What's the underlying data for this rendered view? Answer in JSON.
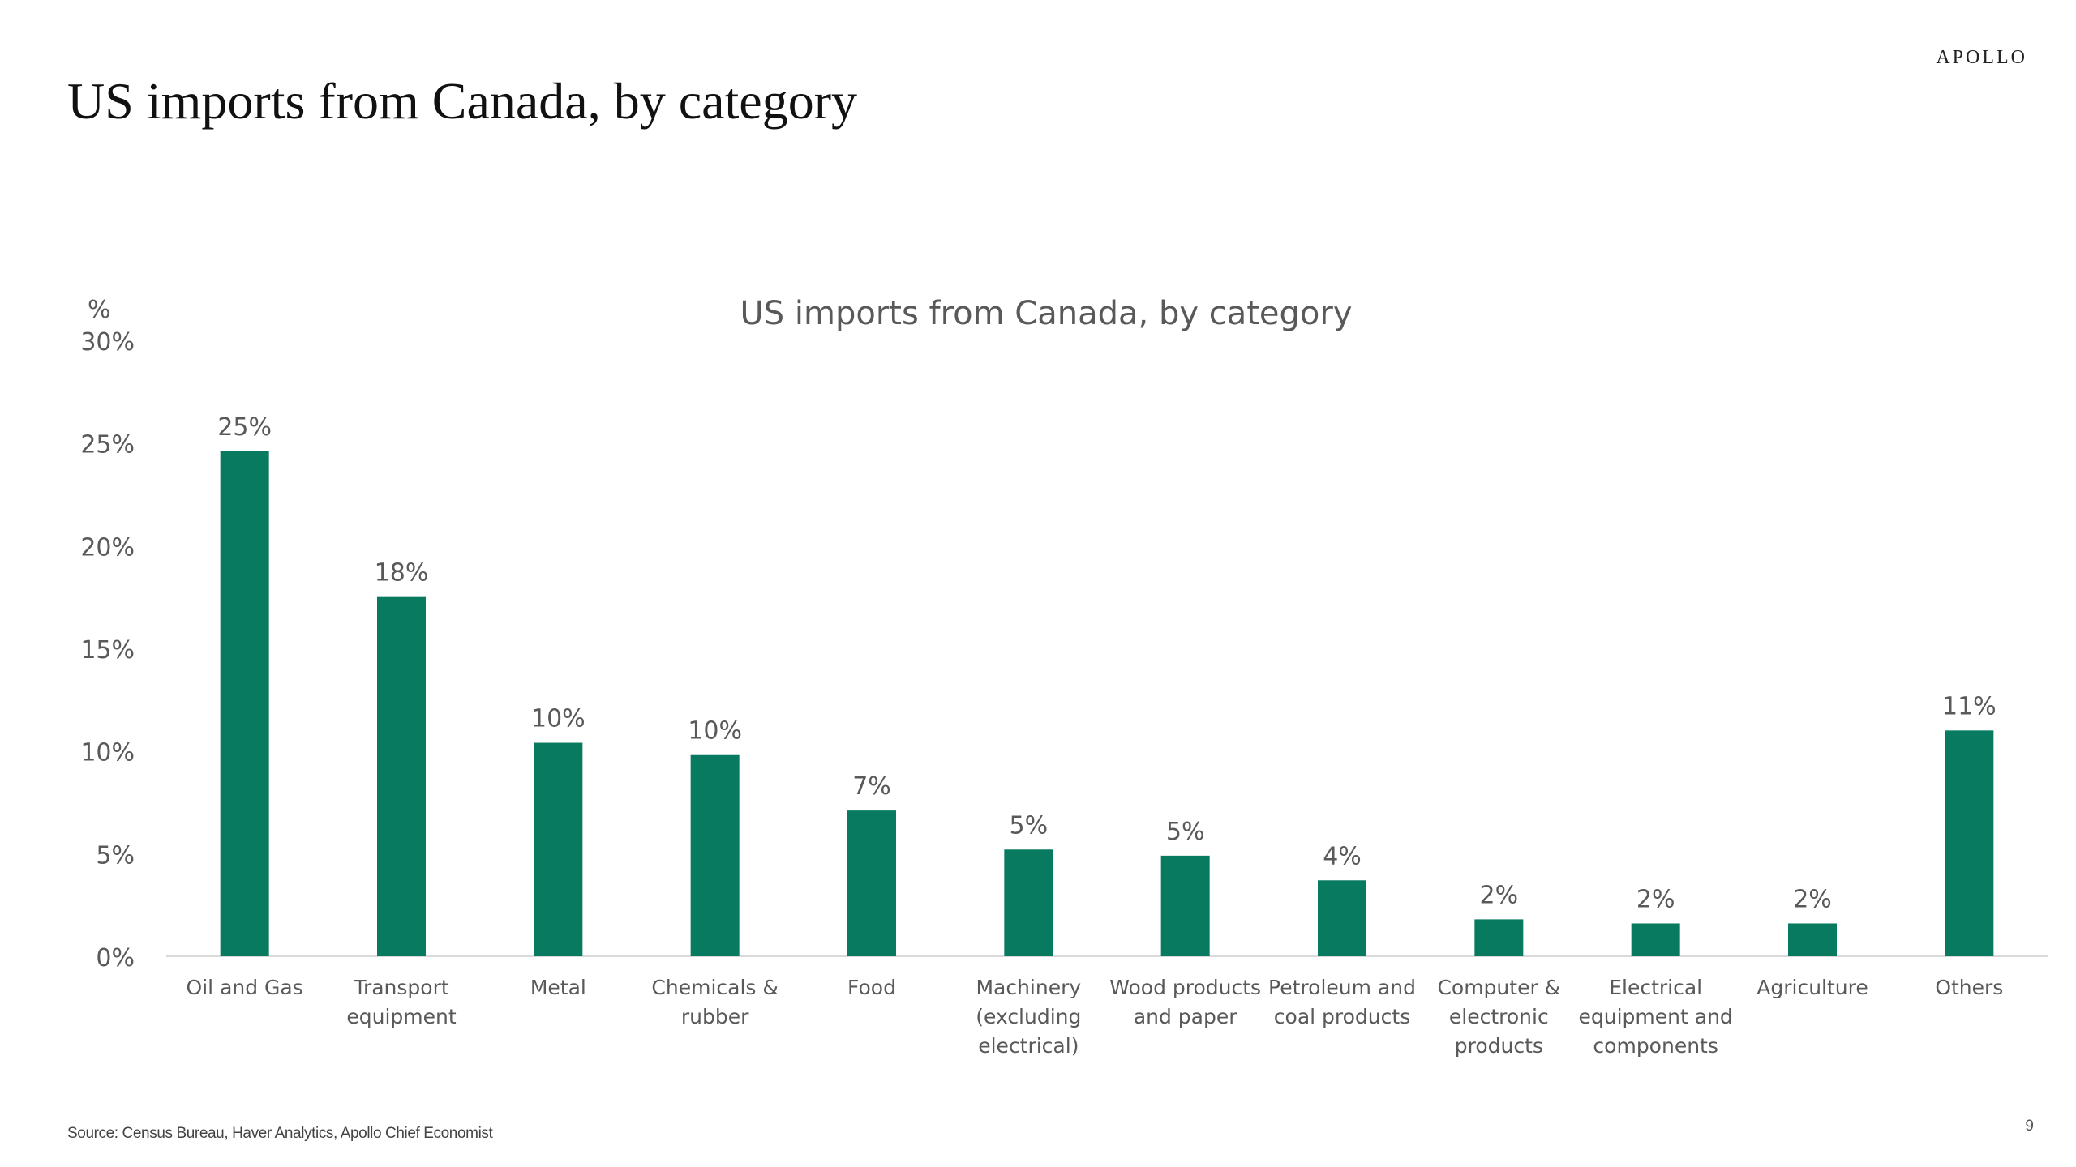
{
  "slide": {
    "title": "US imports from Canada, by category",
    "brand": "APOLLO",
    "source": "Source: Census Bureau, Haver Analytics, Apollo Chief Economist",
    "page_number": "9"
  },
  "colors": {
    "bar": "#077a60",
    "axis_text": "#595959",
    "title_text": "#595959",
    "axis_line": "#d9d9d9"
  },
  "chart_data": {
    "type": "bar",
    "title": "US imports from Canada, by category",
    "ylabel": "%",
    "xlabel": "",
    "ylim": [
      0,
      30
    ],
    "yticks": [
      0,
      5,
      10,
      15,
      20,
      25,
      30
    ],
    "ytick_labels": [
      "0%",
      "5%",
      "10%",
      "15%",
      "20%",
      "25%",
      "30%"
    ],
    "grid": false,
    "categories": [
      [
        "Oil and Gas"
      ],
      [
        "Transport",
        "equipment"
      ],
      [
        "Metal"
      ],
      [
        "Chemicals &",
        "rubber"
      ],
      [
        "Food"
      ],
      [
        "Machinery",
        "(excluding",
        "electrical)"
      ],
      [
        "Wood products",
        "and paper"
      ],
      [
        "Petroleum and",
        "coal products"
      ],
      [
        "Computer &",
        "electronic",
        "products"
      ],
      [
        "Electrical",
        "equipment and",
        "components"
      ],
      [
        "Agriculture"
      ],
      [
        "Others"
      ]
    ],
    "values": [
      24.6,
      17.5,
      10.4,
      9.8,
      7.1,
      5.2,
      4.9,
      3.7,
      1.8,
      1.6,
      1.6,
      11.0
    ],
    "data_labels": [
      "25%",
      "18%",
      "10%",
      "10%",
      "7%",
      "5%",
      "5%",
      "4%",
      "2%",
      "2%",
      "2%",
      "11%"
    ]
  }
}
